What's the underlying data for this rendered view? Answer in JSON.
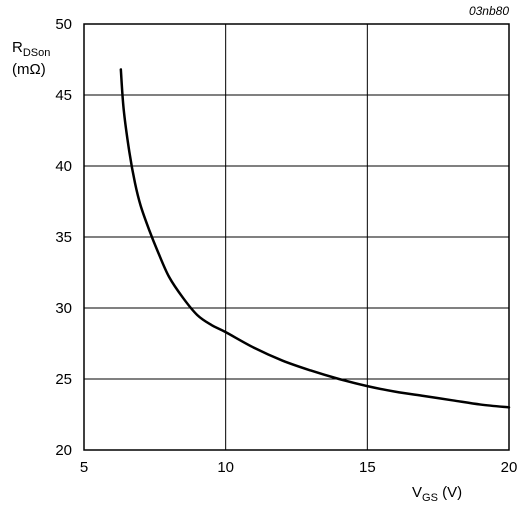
{
  "figure_id": "03nb80",
  "chart_data": {
    "type": "line",
    "grid": true,
    "xlim": [
      5,
      20
    ],
    "ylim": [
      20,
      50
    ],
    "x_ticks": [
      "5",
      "10",
      "15",
      "20"
    ],
    "y_ticks": [
      "20",
      "25",
      "30",
      "35",
      "40",
      "45",
      "50"
    ],
    "y_label": {
      "main": "R",
      "sub": "DSon",
      "unit": "(mΩ)"
    },
    "x_label": {
      "main": "V",
      "sub": "GS",
      "unit": " (V)"
    },
    "series": [
      {
        "x": [
          6.3,
          6.4,
          6.6,
          6.8,
          7.0,
          7.3,
          7.6,
          8.0,
          8.5,
          9.0,
          9.5,
          10.0,
          11.0,
          12.0,
          13.0,
          14.0,
          15.0,
          16.0,
          17.0,
          18.0,
          19.0,
          20.0
        ],
        "y": [
          46.8,
          44.0,
          41.0,
          38.8,
          37.2,
          35.5,
          34.0,
          32.2,
          30.7,
          29.5,
          28.8,
          28.3,
          27.2,
          26.3,
          25.6,
          25.0,
          24.5,
          24.1,
          23.8,
          23.5,
          23.2,
          23.0
        ]
      }
    ]
  }
}
